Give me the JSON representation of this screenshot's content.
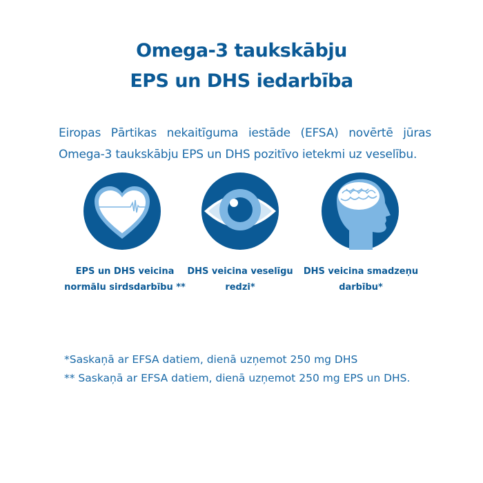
{
  "title": {
    "line1": "Omega-3 taukskābju",
    "line2": "EPS un DHS iedarbība"
  },
  "intro": "Eiropas Pārtikas nekaitīguma iestāde (EFSA) novērtē jūras Omega-3 taukskābju EPS un DHS pozitīvo ietekmi uz veselību.",
  "colors": {
    "primary": "#0b5a96",
    "light": "#7db6e3",
    "white": "#ffffff"
  },
  "benefits": [
    {
      "icon": "heart-icon",
      "caption_line1": "EPS un DHS veicina",
      "caption_line2": "normālu sirdsdarbību **"
    },
    {
      "icon": "eye-icon",
      "caption_line1": "DHS veicina veselīgu",
      "caption_line2": "redzi*"
    },
    {
      "icon": "brain-head-icon",
      "caption_line1": "DHS veicina smadzeņu",
      "caption_line2": "darbību*"
    }
  ],
  "footnotes": [
    "*Saskaņā ar EFSA datiem, dienā uzņemot 250 mg DHS",
    "** Saskaņā ar EFSA datiem, dienā uzņemot 250 mg EPS un DHS."
  ]
}
